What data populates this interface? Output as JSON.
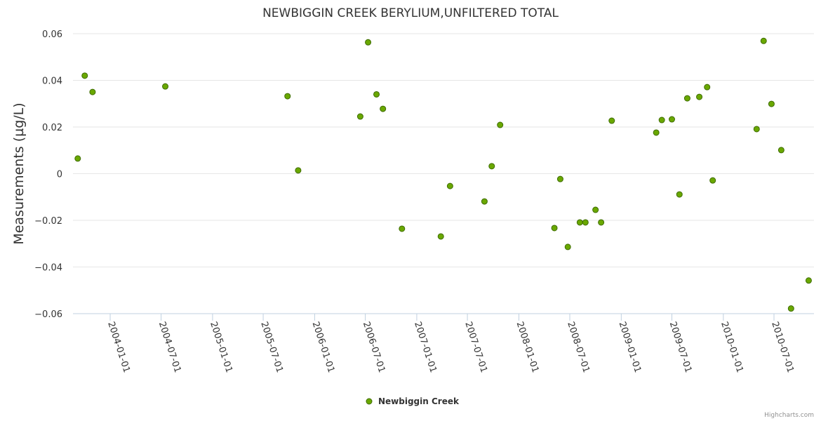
{
  "chart_data": {
    "type": "scatter",
    "title": "NEWBIGGIN CREEK BERYLIUM,UNFILTERED TOTAL",
    "xlabel": "",
    "ylabel": "Measurements (µg/L)",
    "ylim": [
      -0.06,
      0.06
    ],
    "yticks": [
      0.06,
      0.04,
      0.02,
      0,
      -0.02,
      -0.04,
      -0.06
    ],
    "ytick_labels": [
      "0.06",
      "0.04",
      "0.02",
      "0",
      "−0.02",
      "−0.04",
      "−0.06"
    ],
    "xticks": [
      "2004-01-01",
      "2004-07-01",
      "2005-01-01",
      "2005-07-01",
      "2006-01-01",
      "2006-07-01",
      "2007-01-01",
      "2007-07-01",
      "2008-01-01",
      "2008-07-01",
      "2009-01-01",
      "2009-07-01",
      "2010-01-01",
      "2010-07-01"
    ],
    "xlim": [
      "2003-08-21",
      "2010-11-21"
    ],
    "grid": "horizontal",
    "legend_position": "bottom-center",
    "series": [
      {
        "name": "Newbiggin Creek",
        "color": "#6aa800",
        "points": [
          [
            "2003-09-07",
            0.0065
          ],
          [
            "2003-10-02",
            0.042
          ],
          [
            "2003-10-30",
            0.035
          ],
          [
            "2004-07-16",
            0.0374
          ],
          [
            "2005-09-26",
            0.0332
          ],
          [
            "2005-11-03",
            0.0014
          ],
          [
            "2006-06-13",
            0.0245
          ],
          [
            "2006-07-11",
            0.0563
          ],
          [
            "2006-08-10",
            0.034
          ],
          [
            "2006-09-02",
            0.0278
          ],
          [
            "2006-11-09",
            -0.0236
          ],
          [
            "2007-03-28",
            -0.0269
          ],
          [
            "2007-04-30",
            -0.0053
          ],
          [
            "2007-08-31",
            -0.0119
          ],
          [
            "2007-09-26",
            0.0032
          ],
          [
            "2007-10-26",
            0.0209
          ],
          [
            "2008-05-07",
            -0.0233
          ],
          [
            "2008-05-28",
            -0.0023
          ],
          [
            "2008-06-24",
            -0.0314
          ],
          [
            "2008-08-06",
            -0.0209
          ],
          [
            "2008-08-26",
            -0.0209
          ],
          [
            "2008-10-01",
            -0.0155
          ],
          [
            "2008-10-21",
            -0.0209
          ],
          [
            "2008-11-28",
            0.0227
          ],
          [
            "2009-05-06",
            0.0176
          ],
          [
            "2009-05-26",
            0.023
          ],
          [
            "2009-07-01",
            0.0233
          ],
          [
            "2009-07-28",
            -0.0089
          ],
          [
            "2009-08-25",
            0.0323
          ],
          [
            "2009-10-07",
            0.0329
          ],
          [
            "2009-11-04",
            0.0371
          ],
          [
            "2009-11-24",
            -0.0029
          ],
          [
            "2010-04-30",
            0.0191
          ],
          [
            "2010-05-25",
            0.0569
          ],
          [
            "2010-06-22",
            0.0299
          ],
          [
            "2010-07-27",
            0.0101
          ],
          [
            "2010-08-31",
            -0.0578
          ],
          [
            "2010-11-02",
            -0.0458
          ]
        ]
      }
    ]
  },
  "credits": "Highcharts.com"
}
